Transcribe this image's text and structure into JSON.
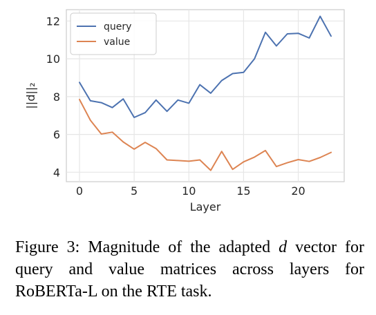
{
  "chart_data": {
    "type": "line",
    "xlabel": "Layer",
    "ylabel": "||d||₂",
    "xlim": [
      -1.2,
      24.2
    ],
    "ylim": [
      3.5,
      12.6
    ],
    "xticks": [
      0,
      5,
      10,
      15,
      20
    ],
    "yticks": [
      4,
      6,
      8,
      10,
      12
    ],
    "grid": true,
    "legend_position": "top-left",
    "x": [
      0,
      1,
      2,
      3,
      4,
      5,
      6,
      7,
      8,
      9,
      10,
      11,
      12,
      13,
      14,
      15,
      16,
      17,
      18,
      19,
      20,
      21,
      22,
      23
    ],
    "series": [
      {
        "name": "query",
        "color": "#4c72b0",
        "values": [
          8.75,
          7.78,
          7.68,
          7.42,
          7.88,
          6.9,
          7.15,
          7.82,
          7.22,
          7.82,
          7.65,
          8.63,
          8.18,
          8.85,
          9.22,
          9.28,
          10.0,
          11.4,
          10.68,
          11.32,
          11.35,
          11.1,
          12.25,
          11.2
        ]
      },
      {
        "name": "value",
        "color": "#dd8452",
        "values": [
          7.85,
          6.75,
          6.02,
          6.12,
          5.6,
          5.22,
          5.58,
          5.25,
          4.65,
          4.62,
          4.58,
          4.65,
          4.1,
          5.1,
          4.15,
          4.55,
          4.8,
          5.15,
          4.3,
          4.5,
          4.67,
          4.57,
          4.78,
          5.05
        ]
      }
    ]
  },
  "caption": {
    "prefix": "Figure 3: Magnitude of the adapted ",
    "var": "d",
    "suffix": " vector for query and value matrices across layers for RoBERTa-L on the RTE task."
  }
}
